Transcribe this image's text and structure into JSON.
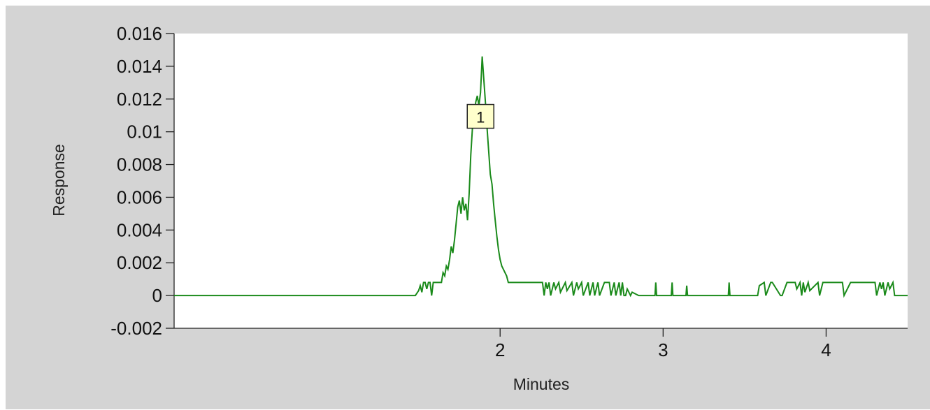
{
  "chart_data": {
    "type": "line",
    "xlabel": "Minutes",
    "ylabel": "Response",
    "xlim": [
      0.0,
      4.5
    ],
    "ylim": [
      -0.002,
      0.016
    ],
    "x_ticks": [
      2,
      3,
      4
    ],
    "x_tick_labels": [
      "2",
      "3",
      "4"
    ],
    "y_ticks": [
      -0.002,
      0,
      0.002,
      0.004,
      0.006,
      0.008,
      0.01,
      0.012,
      0.014,
      0.016
    ],
    "y_tick_labels": [
      "-0.002",
      "0",
      "0.002",
      "0.004",
      "0.006",
      "0.008",
      "0.01",
      "0.012",
      "0.014",
      "0.016"
    ],
    "grid": false,
    "series": [
      {
        "color": "#1a8a1a",
        "x": [
          0.0,
          1.48,
          1.5,
          1.51,
          1.52,
          1.53,
          1.54,
          1.55,
          1.56,
          1.57,
          1.58,
          1.59,
          1.6,
          1.61,
          1.62,
          1.63,
          1.64,
          1.65,
          1.66,
          1.67,
          1.68,
          1.69,
          1.7,
          1.71,
          1.72,
          1.73,
          1.74,
          1.75,
          1.76,
          1.77,
          1.78,
          1.79,
          1.8,
          1.81,
          1.82,
          1.83,
          1.84,
          1.85,
          1.86,
          1.87,
          1.88,
          1.89,
          1.9,
          1.91,
          1.92,
          1.93,
          1.94,
          1.95,
          1.96,
          1.97,
          1.98,
          1.99,
          2.0,
          2.01,
          2.02,
          2.03,
          2.04,
          2.05,
          2.07,
          2.1,
          2.26,
          2.27,
          2.28,
          2.29,
          2.3,
          2.31,
          2.33,
          2.34,
          2.36,
          2.37,
          2.4,
          2.41,
          2.44,
          2.45,
          2.47,
          2.48,
          2.5,
          2.51,
          2.54,
          2.55,
          2.57,
          2.58,
          2.6,
          2.61,
          2.64,
          2.65,
          2.67,
          2.68,
          2.7,
          2.71,
          2.73,
          2.74,
          2.75,
          2.76,
          2.77,
          2.78,
          2.8,
          2.81,
          2.85,
          2.86,
          2.95,
          2.955,
          2.96,
          3.05,
          3.055,
          3.06,
          3.14,
          3.145,
          3.15,
          3.4,
          3.405,
          3.41,
          3.58,
          3.59,
          3.62,
          3.63,
          3.66,
          3.67,
          3.72,
          3.73,
          3.76,
          3.77,
          3.81,
          3.82,
          3.84,
          3.85,
          3.86,
          3.87,
          3.89,
          3.9,
          3.95,
          3.96,
          3.98,
          3.99,
          4.1,
          4.11,
          4.15,
          4.16,
          4.2,
          4.21,
          4.3,
          4.31,
          4.33,
          4.34,
          4.35,
          4.36,
          4.38,
          4.39,
          4.41,
          4.42,
          4.43,
          4.5
        ],
        "y": [
          0.0,
          0.0,
          0.0003,
          0.0006,
          0.0002,
          0.0008,
          0.0008,
          0.0004,
          0.0008,
          0.0008,
          0.0,
          0.0008,
          0.0008,
          0.0008,
          0.0008,
          0.0008,
          0.0008,
          0.0014,
          0.0012,
          0.0018,
          0.0016,
          0.0022,
          0.003,
          0.0026,
          0.0034,
          0.0044,
          0.0054,
          0.0058,
          0.005,
          0.006,
          0.0052,
          0.0056,
          0.0046,
          0.0062,
          0.0086,
          0.0102,
          0.0108,
          0.0118,
          0.0122,
          0.0116,
          0.0124,
          0.0146,
          0.0132,
          0.0118,
          0.0102,
          0.0088,
          0.0074,
          0.0068,
          0.0056,
          0.0046,
          0.0036,
          0.0028,
          0.0022,
          0.0018,
          0.0016,
          0.0014,
          0.0012,
          0.0008,
          0.0008,
          0.0008,
          0.0008,
          0.0,
          0.0008,
          0.0004,
          0.0008,
          0.0,
          0.0008,
          0.0004,
          0.0008,
          0.0002,
          0.0008,
          0.0003,
          0.0008,
          0.0,
          0.0008,
          0.0004,
          0.0008,
          0.0,
          0.0008,
          0.0,
          0.0008,
          0.0,
          0.0008,
          0.0,
          0.0008,
          0.0008,
          0.0008,
          0.0,
          0.0008,
          0.0,
          0.0008,
          0.0,
          0.0008,
          0.0,
          0.0,
          0.0004,
          0.0,
          0.0002,
          0.0,
          0.0,
          0.0,
          0.0008,
          0.0,
          0.0,
          0.0008,
          0.0,
          0.0,
          0.0006,
          0.0,
          0.0,
          0.0008,
          0.0,
          0.0,
          0.0006,
          0.0008,
          0.0,
          0.0008,
          0.0008,
          0.0,
          0.0,
          0.0008,
          0.0008,
          0.0008,
          0.0004,
          0.0008,
          0.0,
          0.0008,
          0.0002,
          0.0008,
          0.0003,
          0.0008,
          0.0,
          0.0008,
          0.0008,
          0.0008,
          0.0,
          0.0008,
          0.0008,
          0.0008,
          0.0008,
          0.0008,
          0.0,
          0.0008,
          0.0004,
          0.0008,
          0.0,
          0.0008,
          0.0004,
          0.0008,
          0.0,
          0.0,
          0.0
        ]
      }
    ],
    "annotations": [
      {
        "text": "1",
        "x": 1.88,
        "y": 0.0109
      }
    ]
  }
}
